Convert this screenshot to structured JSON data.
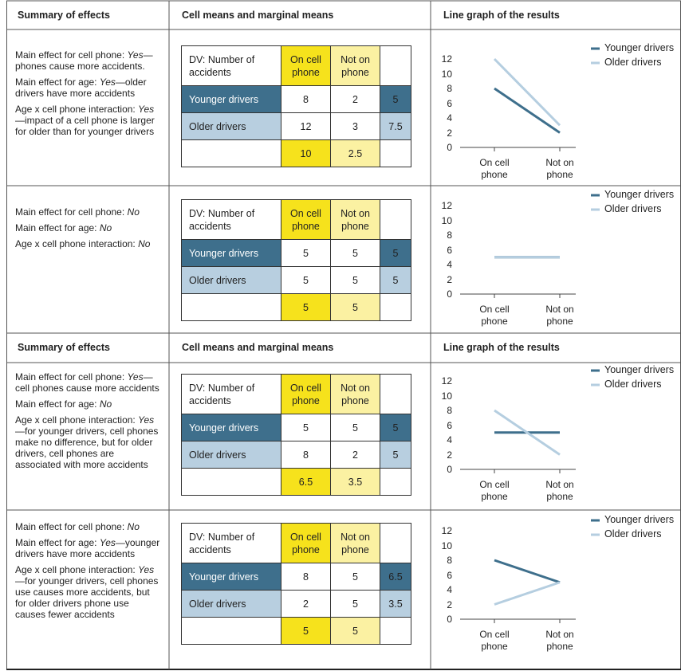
{
  "headers": [
    {
      "summary": "Summary of effects",
      "means": "Cell means and marginal means",
      "graph": "Line graph of the results"
    },
    {
      "summary": "Summary of effects",
      "means": "Cell means and marginal means",
      "graph": "Line graph of the results"
    }
  ],
  "panels": [
    {
      "effects": [
        {
          "label": "Main effect for cell phone:",
          "answer": "Yes",
          "detail": "—phones cause more accidents."
        },
        {
          "label": "Main effect for age:",
          "answer": "Yes",
          "detail": "—older drivers have more accidents"
        },
        {
          "label": "Age x cell phone interaction:",
          "answer": "Yes",
          "detail": "—impact of a cell phone is larger for older than for younger drivers"
        }
      ],
      "table": {
        "dv": "DV: Number of accidents",
        "columns": [
          "On cell phone",
          "Not on phone"
        ],
        "rows": [
          {
            "label": "Younger drivers",
            "values": [
              8,
              2
            ],
            "marginal": 5
          },
          {
            "label": "Older drivers",
            "values": [
              12,
              3
            ],
            "marginal": 7.5
          }
        ],
        "column_marginals": [
          10,
          2.5
        ]
      }
    },
    {
      "effects": [
        {
          "label": "Main effect for cell phone:",
          "answer": "No"
        },
        {
          "label": "Main effect for age:",
          "answer": "No"
        },
        {
          "label": "Age x cell phone interaction:",
          "answer": "No"
        }
      ],
      "table": {
        "dv": "DV: Number of accidents",
        "columns": [
          "On cell phone",
          "Not on phone"
        ],
        "rows": [
          {
            "label": "Younger drivers",
            "values": [
              5,
              5
            ],
            "marginal": 5
          },
          {
            "label": "Older drivers",
            "values": [
              5,
              5
            ],
            "marginal": 5
          }
        ],
        "column_marginals": [
          5,
          5
        ]
      }
    },
    {
      "effects": [
        {
          "label": "Main effect for cell phone:",
          "answer": "Yes",
          "detail": "—cell phones cause more accidents"
        },
        {
          "label": "Main effect for age:",
          "answer": "No"
        },
        {
          "label": "Age x cell phone interaction:",
          "answer": "Yes",
          "detail": "—for younger drivers, cell phones make no difference, but for older drivers, cell phones are associated with more accidents"
        }
      ],
      "table": {
        "dv": "DV: Number of accidents",
        "columns": [
          "On cell phone",
          "Not on phone"
        ],
        "rows": [
          {
            "label": "Younger drivers",
            "values": [
              5,
              5
            ],
            "marginal": 5
          },
          {
            "label": "Older drivers",
            "values": [
              8,
              2
            ],
            "marginal": 5
          }
        ],
        "column_marginals": [
          6.5,
          3.5
        ]
      }
    },
    {
      "effects": [
        {
          "label": "Main effect for cell phone:",
          "answer": "No"
        },
        {
          "label": "Main effect for age:",
          "answer": "Yes",
          "detail": "—younger drivers have more accidents"
        },
        {
          "label": "Age x cell phone interaction:",
          "answer": "Yes",
          "detail": "—for younger drivers, cell phones use causes more accidents, but for older drivers phone use causes fewer accidents"
        }
      ],
      "table": {
        "dv": "DV: Number of accidents",
        "columns": [
          "On cell phone",
          "Not on phone"
        ],
        "rows": [
          {
            "label": "Younger drivers",
            "values": [
              8,
              5
            ],
            "marginal": 6.5
          },
          {
            "label": "Older drivers",
            "values": [
              2,
              5
            ],
            "marginal": 3.5
          }
        ],
        "column_marginals": [
          5,
          5
        ]
      }
    }
  ],
  "chart_data": [
    {
      "type": "line",
      "categories": [
        "On cell phone",
        "Not on phone"
      ],
      "ylim": [
        0,
        12
      ],
      "yticks": [
        0,
        2,
        4,
        6,
        8,
        10,
        12
      ],
      "series": [
        {
          "name": "Younger drivers",
          "color": "#3e6f8c",
          "values": [
            8,
            2
          ]
        },
        {
          "name": "Older drivers",
          "color": "#b5cee0",
          "values": [
            12,
            3
          ]
        }
      ]
    },
    {
      "type": "line",
      "categories": [
        "On cell phone",
        "Not on phone"
      ],
      "ylim": [
        0,
        12
      ],
      "yticks": [
        0,
        2,
        4,
        6,
        8,
        10,
        12
      ],
      "series": [
        {
          "name": "Younger drivers",
          "color": "#3e6f8c",
          "values": [
            5,
            5
          ]
        },
        {
          "name": "Older drivers",
          "color": "#b5cee0",
          "values": [
            5,
            5
          ]
        }
      ]
    },
    {
      "type": "line",
      "categories": [
        "On cell phone",
        "Not on phone"
      ],
      "ylim": [
        0,
        12
      ],
      "yticks": [
        0,
        2,
        4,
        6,
        8,
        10,
        12
      ],
      "series": [
        {
          "name": "Younger drivers",
          "color": "#3e6f8c",
          "values": [
            5,
            5
          ]
        },
        {
          "name": "Older drivers",
          "color": "#b5cee0",
          "values": [
            8,
            2
          ]
        }
      ]
    },
    {
      "type": "line",
      "categories": [
        "On cell phone",
        "Not on phone"
      ],
      "ylim": [
        0,
        12
      ],
      "yticks": [
        0,
        2,
        4,
        6,
        8,
        10,
        12
      ],
      "series": [
        {
          "name": "Younger drivers",
          "color": "#3e6f8c",
          "values": [
            8,
            5
          ]
        },
        {
          "name": "Older drivers",
          "color": "#b5cee0",
          "values": [
            2,
            5
          ]
        }
      ]
    }
  ]
}
